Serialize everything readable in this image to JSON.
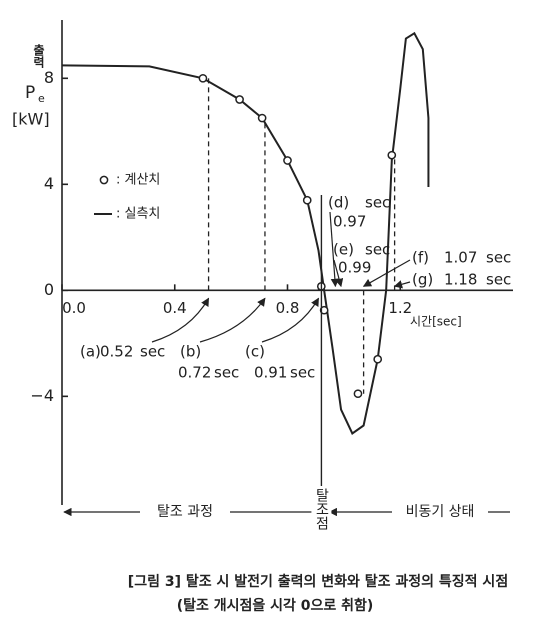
{
  "chart_data": {
    "type": "line",
    "y_label": {
      "name": "출력",
      "symbol": "P",
      "subscript": "e",
      "unit": "[kW]"
    },
    "x_label": "시간[sec]",
    "xlim": [
      0,
      1.6
    ],
    "ylim": [
      -8.1,
      10.2
    ],
    "xticks": [
      {
        "value": 0,
        "label": "0.0"
      },
      0.4,
      0.8,
      1.2
    ],
    "yticks": [
      {
        "value": -4,
        "label": "−4"
      },
      0,
      4,
      8
    ],
    "series": [
      {
        "name": ": 실측치",
        "color": "#222222",
        "style": "line",
        "x": [
          0,
          0.31,
          0.5,
          0.63,
          0.71,
          0.8,
          0.87,
          0.91,
          0.93,
          0.96,
          0.99,
          1.03,
          1.07,
          1.12,
          1.15,
          1.17,
          1.2,
          1.22,
          1.25,
          1.28,
          1.3,
          1.3
        ],
        "values": [
          8.49,
          8.45,
          8.0,
          7.2,
          6.5,
          4.9,
          3.4,
          1.5,
          0,
          -2.2,
          -4.5,
          -5.4,
          -5.1,
          -2.6,
          0,
          4.9,
          7.6,
          9.5,
          9.7,
          9.1,
          6.5,
          3.9
        ]
      },
      {
        "name": ": 계산치",
        "color": "#222222",
        "style": "marker",
        "x": [
          0.5,
          0.63,
          0.71,
          0.8,
          0.87,
          0.92,
          0.93,
          1.05,
          1.12,
          1.17
        ],
        "values": [
          8.0,
          7.2,
          6.5,
          4.9,
          3.4,
          0.15,
          -0.75,
          -3.9,
          -2.6,
          5.1
        ]
      }
    ],
    "events": [
      {
        "label": "(a)",
        "time": 0.52,
        "unit": "sec"
      },
      {
        "label": "(b)",
        "time": 0.72,
        "unit": "sec"
      },
      {
        "label": "(c)",
        "time": 0.91,
        "unit": "sec"
      },
      {
        "label": "(d)",
        "time": 0.97,
        "unit": "sec"
      },
      {
        "label": "(e)",
        "time": 0.99,
        "unit": "sec"
      },
      {
        "label": "(f)",
        "time": 1.07,
        "unit": "sec"
      },
      {
        "label": "(g)",
        "time": 1.18,
        "unit": "sec"
      }
    ],
    "regions": {
      "before": "탈조 과정",
      "point": "탈조점",
      "after": "비동기 상태"
    },
    "caption": [
      "[그림 3] 탈조 시 발전기 출력의 변화와 탈조 과정의 특징적 시점",
      "(탈조 개시점을 시각 0으로 취함)"
    ]
  }
}
